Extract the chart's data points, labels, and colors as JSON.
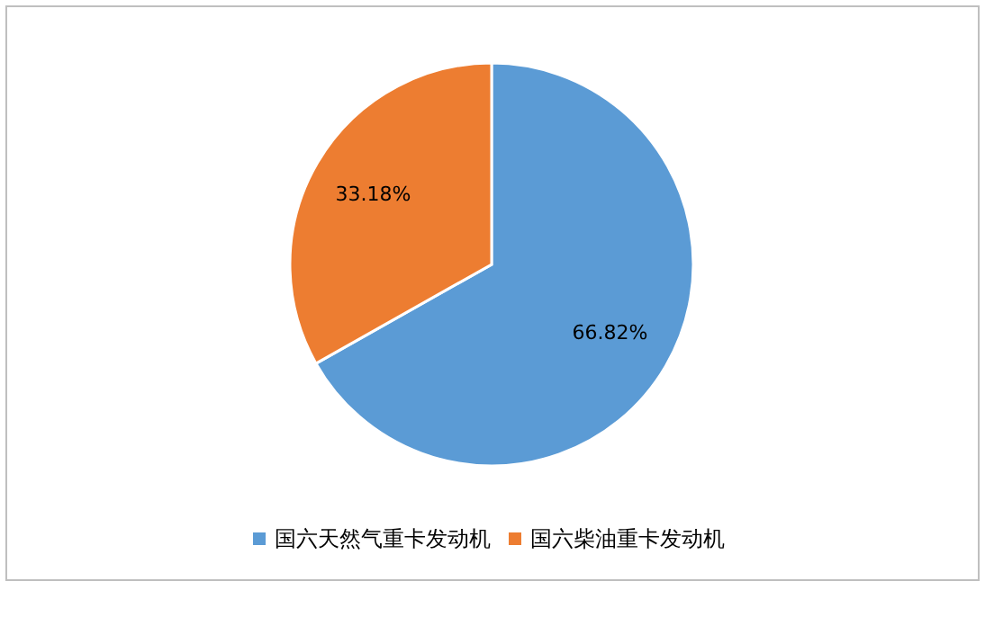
{
  "chart_data": {
    "type": "pie",
    "categories": [
      "国六天然气重卡发动机",
      "国六柴油重卡发动机"
    ],
    "values": [
      66.82,
      33.18
    ],
    "colors": [
      "#5b9bd5",
      "#ed7d31"
    ],
    "value_labels": [
      "66.82%",
      "33.18%"
    ],
    "legend": "bottom"
  }
}
